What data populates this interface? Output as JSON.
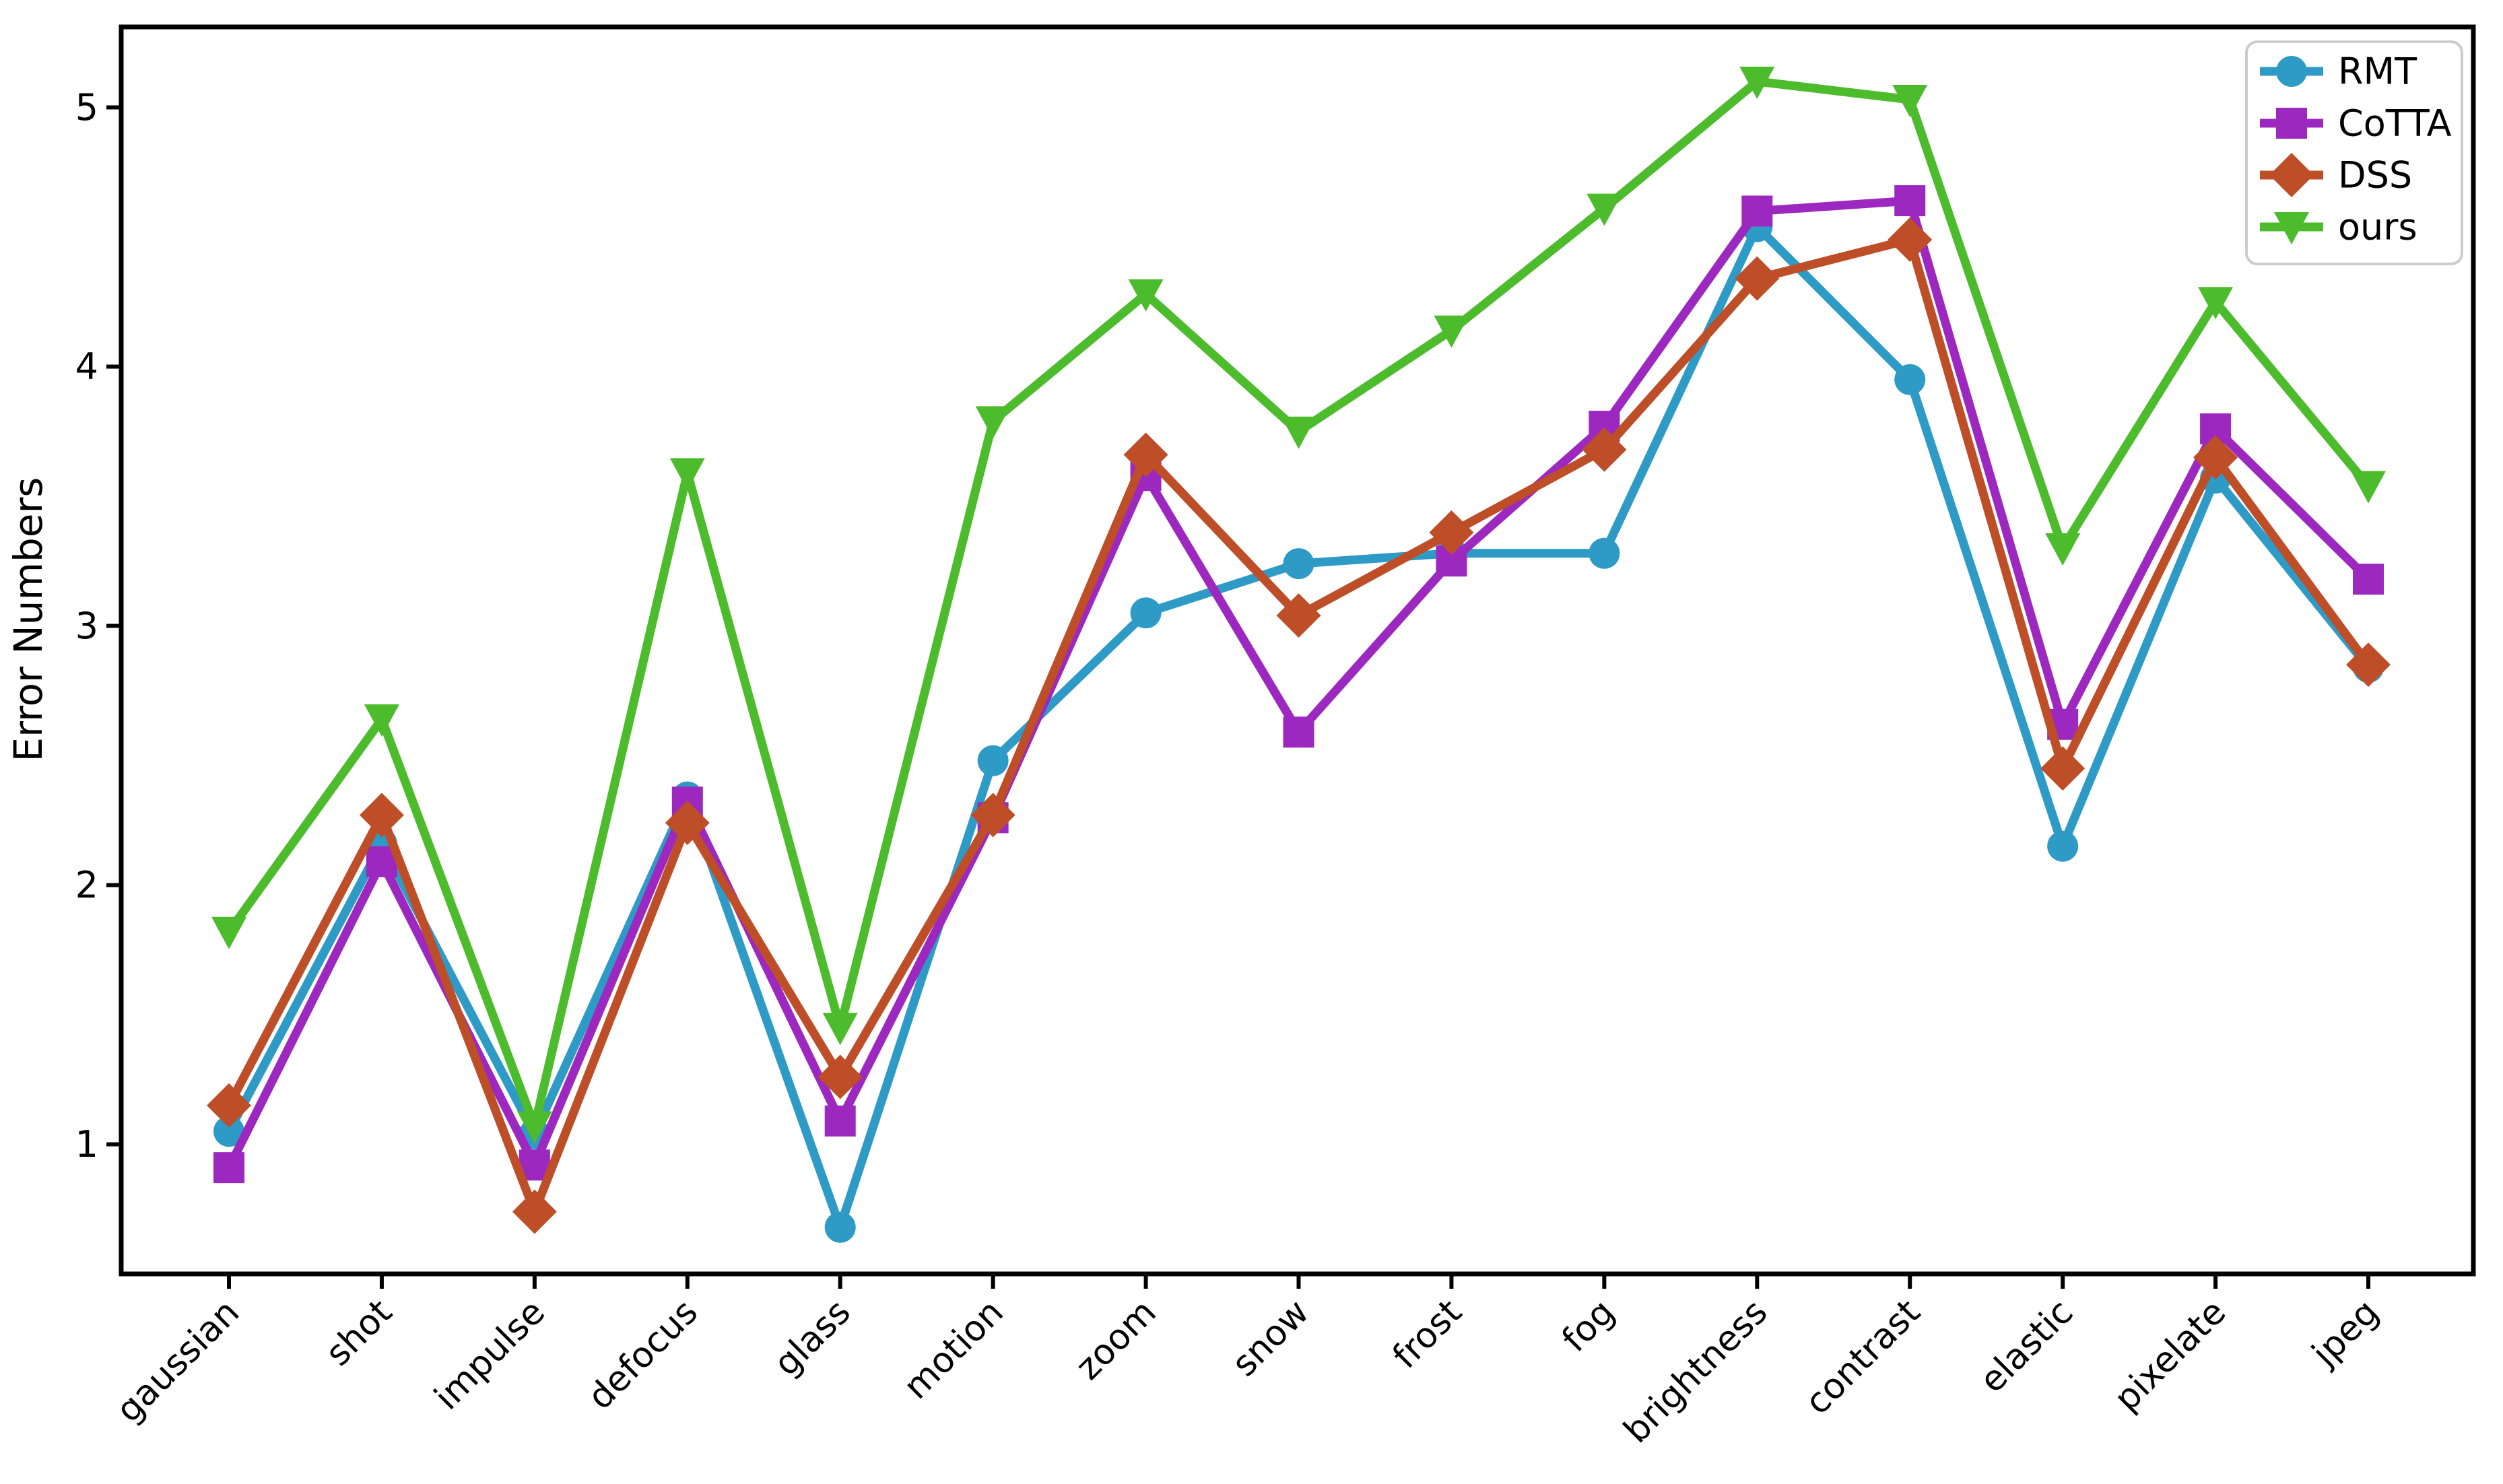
{
  "figure": {
    "background": "#ffffff",
    "axis_color": "#000000",
    "legend_border_color": "#cccccc",
    "legend_background": "#ffffff"
  },
  "chart_data": {
    "type": "line",
    "title": "",
    "xlabel": "",
    "ylabel": "Error Numbers",
    "grid": false,
    "legend_position": "upper right",
    "ylim": [
      0.5,
      5.31
    ],
    "yticks": [
      1,
      2,
      3,
      4,
      5
    ],
    "categories": [
      "gaussian",
      "shot",
      "impulse",
      "defocus",
      "glass",
      "motion",
      "zoom",
      "snow",
      "frost",
      "fog",
      "brightness",
      "contrast",
      "elastic",
      "pixelate",
      "jpeg"
    ],
    "series": [
      {
        "name": "RMT",
        "color": "#2E9AC6",
        "marker": "circle",
        "values": [
          1.05,
          2.16,
          1.04,
          2.34,
          0.68,
          2.48,
          3.05,
          3.24,
          3.28,
          3.28,
          4.54,
          3.95,
          2.15,
          3.57,
          2.84
        ]
      },
      {
        "name": "CoTTA",
        "color": "#9C28C0",
        "marker": "square",
        "values": [
          0.91,
          2.09,
          0.92,
          2.32,
          1.09,
          2.26,
          3.58,
          2.59,
          3.25,
          3.77,
          4.6,
          4.64,
          2.62,
          3.76,
          3.18
        ]
      },
      {
        "name": "DSS",
        "color": "#BD4E27",
        "marker": "diamond",
        "values": [
          1.15,
          2.27,
          0.74,
          2.24,
          1.26,
          2.27,
          3.66,
          3.04,
          3.36,
          3.68,
          4.34,
          4.49,
          2.45,
          3.65,
          2.85
        ]
      },
      {
        "name": "ours",
        "color": "#4CBB2C",
        "marker": "triangle-down",
        "values": [
          1.82,
          2.64,
          1.07,
          3.59,
          1.45,
          3.79,
          4.28,
          3.75,
          4.14,
          4.61,
          5.1,
          5.03,
          3.3,
          4.25,
          3.54
        ]
      }
    ]
  }
}
